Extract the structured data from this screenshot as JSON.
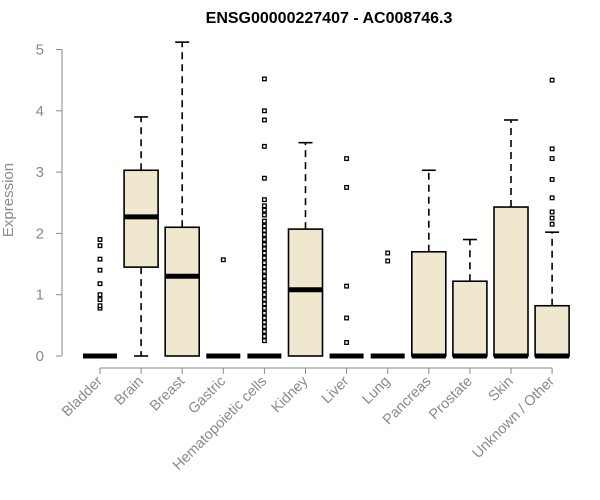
{
  "chart_data": {
    "type": "boxplot",
    "title": "ENSG00000227407 - AC008746.3",
    "ylabel": "Expression",
    "xlabel": "",
    "ylim": [
      0,
      5.1
    ],
    "yticks": [
      0,
      1,
      2,
      3,
      4,
      5
    ],
    "categories": [
      "Bladder",
      "Brain",
      "Breast",
      "Gastric",
      "Hematopoietic cells",
      "Kidney",
      "Liver",
      "Lung",
      "Pancreas",
      "Prostate",
      "Skin",
      "Unknown / Other"
    ],
    "box_color": "#efe8cf",
    "boxes": [
      {
        "name": "Bladder",
        "whislo": 0,
        "q1": 0,
        "med": 0,
        "q3": 0,
        "whishi": 0,
        "fliers": [
          0.78,
          0.82,
          0.92,
          1.0,
          1.18,
          1.4,
          1.58,
          1.8,
          1.9
        ]
      },
      {
        "name": "Brain",
        "whislo": 0,
        "q1": 1.45,
        "med": 2.27,
        "q3": 3.03,
        "whishi": 3.9,
        "fliers": []
      },
      {
        "name": "Breast",
        "whislo": 0,
        "q1": 0,
        "med": 1.3,
        "q3": 2.1,
        "whishi": 5.12,
        "fliers": []
      },
      {
        "name": "Gastric",
        "whislo": 0,
        "q1": 0,
        "med": 0,
        "q3": 0,
        "whishi": 0,
        "fliers": [
          1.57
        ]
      },
      {
        "name": "Hematopoietic cells",
        "whislo": 0,
        "q1": 0,
        "med": 0,
        "q3": 0,
        "whishi": 0,
        "fliers": [
          0.25,
          0.32,
          0.4,
          0.48,
          0.55,
          0.62,
          0.7,
          0.78,
          0.85,
          0.92,
          1.0,
          1.08,
          1.15,
          1.22,
          1.3,
          1.38,
          1.45,
          1.52,
          1.6,
          1.68,
          1.75,
          1.82,
          1.9,
          1.98,
          2.05,
          2.12,
          2.2,
          2.3,
          2.38,
          2.45,
          2.55,
          2.9,
          3.42,
          3.85,
          4.0,
          4.52
        ]
      },
      {
        "name": "Kidney",
        "whislo": 0,
        "q1": 0,
        "med": 1.08,
        "q3": 2.07,
        "whishi": 3.48,
        "fliers": []
      },
      {
        "name": "Liver",
        "whislo": 0,
        "q1": 0,
        "med": 0,
        "q3": 0,
        "whishi": 0,
        "fliers": [
          0.22,
          0.62,
          1.14,
          2.75,
          3.22
        ]
      },
      {
        "name": "Lung",
        "whislo": 0,
        "q1": 0,
        "med": 0,
        "q3": 0,
        "whishi": 0,
        "fliers": [
          1.55,
          1.68
        ]
      },
      {
        "name": "Pancreas",
        "whislo": 0,
        "q1": 0,
        "med": 0,
        "q3": 1.7,
        "whishi": 3.03,
        "fliers": []
      },
      {
        "name": "Prostate",
        "whislo": 0,
        "q1": 0,
        "med": 0,
        "q3": 1.22,
        "whishi": 1.9,
        "fliers": []
      },
      {
        "name": "Skin",
        "whislo": 0,
        "q1": 0,
        "med": 0,
        "q3": 2.43,
        "whishi": 3.85,
        "fliers": []
      },
      {
        "name": "Unknown / Other",
        "whislo": 0,
        "q1": 0,
        "med": 0,
        "q3": 0.82,
        "whishi": 2.02,
        "fliers": [
          2.15,
          2.25,
          2.35,
          2.58,
          2.88,
          3.22,
          3.38,
          4.5
        ]
      }
    ]
  }
}
